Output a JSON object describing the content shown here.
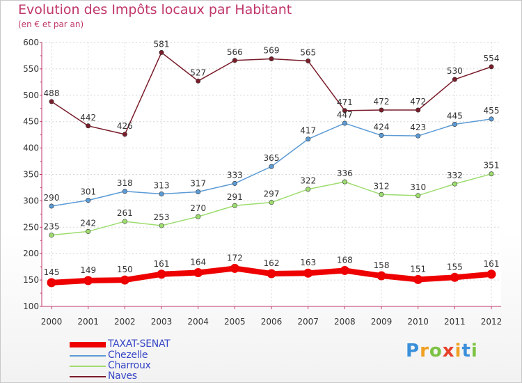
{
  "title": "Evolution des Impôts locaux par Habitant",
  "subtitle": "(en € et par an)",
  "brand": {
    "letters": [
      {
        "ch": "P",
        "color": "#3a8fd9"
      },
      {
        "ch": "r",
        "color": "#f0a020"
      },
      {
        "ch": "o",
        "color": "#7cc243"
      },
      {
        "ch": "x",
        "color": "#e8402a"
      },
      {
        "ch": "i",
        "color": "#f0a020"
      },
      {
        "ch": "t",
        "color": "#3a8fd9"
      },
      {
        "ch": "i",
        "color": "#7cc243"
      }
    ]
  },
  "chart_data": {
    "type": "line",
    "x": [
      "2000",
      "2001",
      "2002",
      "2003",
      "2004",
      "2005",
      "2006",
      "2007",
      "2008",
      "2009",
      "2010",
      "2011",
      "2012"
    ],
    "ylim": [
      100,
      600
    ],
    "yticks": [
      "100",
      "150",
      "200",
      "250",
      "300",
      "350",
      "400",
      "450",
      "500",
      "550",
      "600"
    ],
    "grid": true,
    "legend_position": "bottom-left",
    "series": [
      {
        "name": "TAXAT-SENAT",
        "color": "#ee0000",
        "width": 8,
        "values": [
          145,
          149,
          150,
          161,
          164,
          172,
          162,
          163,
          168,
          158,
          151,
          155,
          161
        ],
        "labels": [
          "145",
          "149",
          "150",
          "161",
          "164",
          "172",
          "162",
          "163",
          "168",
          "158",
          "151",
          "155",
          "161"
        ]
      },
      {
        "name": "Chezelle",
        "color": "#5b9bd5",
        "width": 1.5,
        "values": [
          290,
          301,
          318,
          313,
          317,
          333,
          365,
          417,
          447,
          424,
          423,
          445,
          455
        ],
        "labels": [
          "290",
          "301",
          "318",
          "313",
          "317",
          "333",
          "365",
          "417",
          "447",
          "424",
          "423",
          "445",
          "455"
        ]
      },
      {
        "name": "Charroux",
        "color": "#9ddc6e",
        "width": 1.5,
        "values": [
          235,
          242,
          261,
          253,
          270,
          291,
          297,
          322,
          336,
          312,
          310,
          332,
          351
        ],
        "labels": [
          "235",
          "242",
          "261",
          "253",
          "270",
          "291",
          "297",
          "322",
          "336",
          "312",
          "310",
          "332",
          "351"
        ]
      },
      {
        "name": "Naves",
        "color": "#7a1c2a",
        "width": 1.5,
        "values": [
          488,
          442,
          426,
          581,
          527,
          566,
          569,
          565,
          471,
          472,
          472,
          530,
          554
        ],
        "labels": [
          "488",
          "442",
          "426",
          "581",
          "527",
          "566",
          "569",
          "565",
          "471",
          "472",
          "472",
          "530",
          "554"
        ]
      }
    ]
  }
}
